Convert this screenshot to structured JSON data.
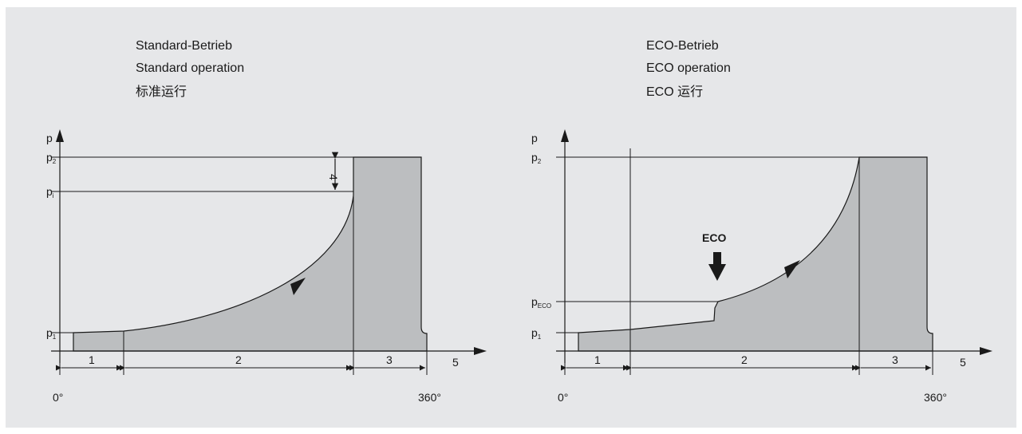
{
  "left": {
    "title": [
      "Standard-Betrieb",
      "Standard operation",
      "标准运行"
    ],
    "y_axis": "p",
    "labels": {
      "p2": "p",
      "p2_sub": "2",
      "pi": "p",
      "pi_sub": "i",
      "p1": "p",
      "p1_sub": "1"
    },
    "marker_4": "4",
    "segments": [
      "1",
      "2",
      "3"
    ],
    "seg5": "5",
    "angle_start": "0°",
    "angle_end": "360°"
  },
  "right": {
    "title": [
      "ECO-Betrieb",
      "ECO operation",
      "ECO  运行"
    ],
    "y_axis": "p",
    "labels": {
      "p2": "p",
      "p2_sub": "2",
      "peco": "p",
      "peco_sub": "ECO",
      "p1": "p",
      "p1_sub": "1"
    },
    "eco_label": "ECO",
    "segments": [
      "1",
      "2",
      "3"
    ],
    "seg5": "5",
    "angle_start": "0°",
    "angle_end": "360°"
  },
  "colors": {
    "panel": "#e6e7e9",
    "fill": "#bcbec0",
    "line": "#1a1a1a"
  }
}
